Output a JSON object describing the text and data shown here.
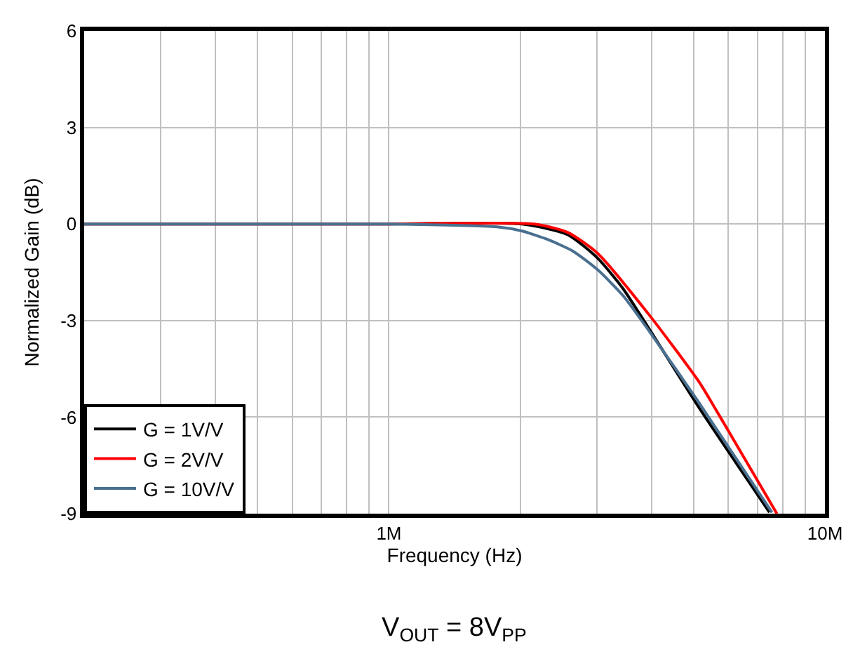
{
  "chart_data": {
    "type": "line",
    "xlabel": "Frequency (Hz)",
    "ylabel": "Normalized Gain (dB)",
    "log": "x",
    "grid": true,
    "legend": "bottom left",
    "marker": "none",
    "line_style": "solid",
    "xlim": [
      200000,
      10000000
    ],
    "ylim": [
      -9,
      6
    ],
    "yticks": [
      -9,
      -6,
      -3,
      0,
      3,
      6
    ],
    "xticks": [
      {
        "value": 200000,
        "label": null
      },
      {
        "value": 300000,
        "label": null
      },
      {
        "value": 400000,
        "label": null
      },
      {
        "value": 500000,
        "label": null
      },
      {
        "value": 600000,
        "label": null
      },
      {
        "value": 700000,
        "label": null
      },
      {
        "value": 800000,
        "label": null
      },
      {
        "value": 900000,
        "label": null
      },
      {
        "value": 1000000,
        "label": "1M"
      },
      {
        "value": 2000000,
        "label": null
      },
      {
        "value": 3000000,
        "label": null
      },
      {
        "value": 4000000,
        "label": null
      },
      {
        "value": 5000000,
        "label": null
      },
      {
        "value": 6000000,
        "label": null
      },
      {
        "value": 7000000,
        "label": null
      },
      {
        "value": 8000000,
        "label": null
      },
      {
        "value": 9000000,
        "label": null
      },
      {
        "value": 10000000,
        "label": "10M"
      }
    ],
    "annotations": [
      "V$_{OUT}$ = 8V$_{PP}$"
    ],
    "series": [
      {
        "name": "G = 1V/V",
        "color": "#000000",
        "x": [
          200000,
          1000000,
          2020000,
          2570000,
          3010000,
          3440000,
          3940000,
          5140000,
          7460000
        ],
        "values": [
          0,
          0,
          0,
          -0.33,
          -1.06,
          -2.0,
          -3.23,
          -5.7,
          -8.96
        ]
      },
      {
        "name": "G = 2V/V",
        "color": "#ff0000",
        "x": [
          200000,
          1000000,
          2150000,
          2570000,
          3010000,
          3940000,
          5140000,
          5870000,
          7760000
        ],
        "values": [
          0,
          0,
          0,
          -0.26,
          -0.91,
          -2.8,
          -4.9,
          -6.2,
          -9
        ]
      },
      {
        "name": "G = 10V/V",
        "color": "#4a7090",
        "x": [
          200000,
          1000000,
          1770000,
          2020000,
          2310000,
          2640000,
          3010000,
          3440000,
          3940000,
          5140000,
          7560000
        ],
        "values": [
          0,
          0,
          -0.09,
          -0.22,
          -0.48,
          -0.84,
          -1.42,
          -2.22,
          -3.3,
          -5.55,
          -8.96
        ]
      }
    ]
  }
}
